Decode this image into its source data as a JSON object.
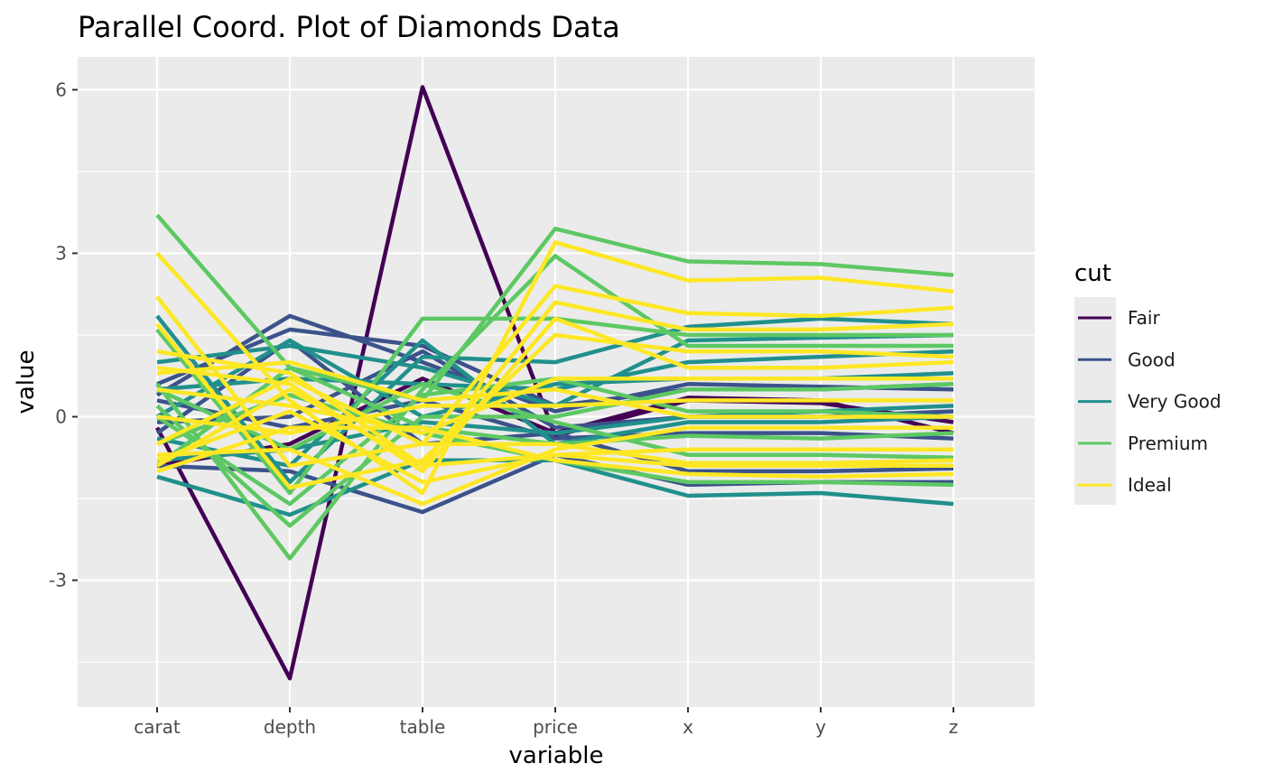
{
  "chart_data": {
    "type": "line",
    "subtype": "parallel-coordinates",
    "title": "Parallel Coord. Plot of Diamonds Data",
    "xlabel": "variable",
    "ylabel": "value",
    "categories": [
      "carat",
      "depth",
      "table",
      "price",
      "x",
      "y",
      "z"
    ],
    "y_ticks": [
      -3,
      0,
      3,
      6
    ],
    "y_tick_labels": [
      "-3",
      "0",
      "3",
      "6"
    ],
    "ylim": [
      -5.35,
      6.6
    ],
    "grid": true,
    "legend": {
      "title": "cut",
      "position": "right",
      "entries": [
        "Fair",
        "Good",
        "Very Good",
        "Premium",
        "Ideal"
      ]
    },
    "colors": {
      "Fair": "#440154",
      "Good": "#3B528B",
      "Very Good": "#21908C",
      "Premium": "#5DC863",
      "Ideal": "#FDE725"
    },
    "series": [
      {
        "group": "Fair",
        "values": [
          -0.2,
          -4.8,
          6.05,
          -0.35,
          0.3,
          0.25,
          -0.1
        ]
      },
      {
        "group": "Fair",
        "values": [
          -0.9,
          -0.5,
          0.7,
          -0.3,
          0.35,
          0.3,
          -0.3
        ]
      },
      {
        "group": "Good",
        "values": [
          0.4,
          1.85,
          1.0,
          0.1,
          0.6,
          0.55,
          0.5
        ]
      },
      {
        "group": "Good",
        "values": [
          0.6,
          1.6,
          1.3,
          0.2,
          0.5,
          0.5,
          0.6
        ]
      },
      {
        "group": "Good",
        "values": [
          -0.9,
          -1.0,
          -1.75,
          -0.7,
          -1.25,
          -1.2,
          -1.2
        ]
      },
      {
        "group": "Good",
        "values": [
          -0.3,
          1.4,
          -0.5,
          -0.3,
          -1.0,
          -1.0,
          -0.95
        ]
      },
      {
        "group": "Good",
        "values": [
          -0.1,
          0.0,
          1.2,
          -0.2,
          0.0,
          0.0,
          0.1
        ]
      },
      {
        "group": "Good",
        "values": [
          0.3,
          -0.2,
          0.3,
          -0.4,
          -0.3,
          -0.3,
          -0.4
        ]
      },
      {
        "group": "Very Good",
        "values": [
          1.85,
          -1.2,
          1.1,
          1.0,
          1.65,
          1.8,
          1.7
        ]
      },
      {
        "group": "Very Good",
        "values": [
          1.0,
          1.3,
          0.9,
          0.2,
          1.4,
          1.45,
          1.5
        ]
      },
      {
        "group": "Very Good",
        "values": [
          -1.1,
          -1.8,
          -0.8,
          -0.8,
          -1.45,
          -1.4,
          -1.6
        ]
      },
      {
        "group": "Very Good",
        "values": [
          0.5,
          0.7,
          0.6,
          0.5,
          1.0,
          1.1,
          1.2
        ]
      },
      {
        "group": "Very Good",
        "values": [
          -0.8,
          -0.6,
          -0.1,
          -0.3,
          0.0,
          0.1,
          0.2
        ]
      },
      {
        "group": "Very Good",
        "values": [
          0.0,
          1.4,
          0.0,
          0.6,
          0.7,
          0.7,
          0.8
        ]
      },
      {
        "group": "Very Good",
        "values": [
          -0.4,
          -0.9,
          1.4,
          -0.5,
          -0.1,
          -0.1,
          0.0
        ]
      },
      {
        "group": "Premium",
        "values": [
          3.7,
          0.9,
          0.3,
          3.45,
          2.85,
          2.8,
          2.6
        ]
      },
      {
        "group": "Premium",
        "values": [
          1.6,
          -1.4,
          1.8,
          1.8,
          1.5,
          1.5,
          1.5
        ]
      },
      {
        "group": "Premium",
        "values": [
          0.6,
          -2.6,
          0.5,
          2.95,
          1.3,
          1.3,
          1.3
        ]
      },
      {
        "group": "Premium",
        "values": [
          0.2,
          -2.0,
          0.0,
          0.0,
          0.5,
          0.5,
          0.6
        ]
      },
      {
        "group": "Premium",
        "values": [
          -0.9,
          0.9,
          -0.2,
          -0.5,
          -0.35,
          -0.4,
          -0.3
        ]
      },
      {
        "group": "Premium",
        "values": [
          0.5,
          -0.6,
          0.6,
          -0.1,
          -0.7,
          -0.7,
          -0.75
        ]
      },
      {
        "group": "Premium",
        "values": [
          -0.5,
          0.4,
          -0.3,
          -0.8,
          -1.2,
          -1.2,
          -1.25
        ]
      },
      {
        "group": "Premium",
        "values": [
          0.0,
          -1.6,
          0.4,
          0.7,
          0.1,
          0.1,
          0.0
        ]
      },
      {
        "group": "Ideal",
        "values": [
          3.0,
          0.3,
          -1.4,
          3.2,
          2.5,
          2.55,
          2.3
        ]
      },
      {
        "group": "Ideal",
        "values": [
          2.2,
          -0.9,
          -0.5,
          2.4,
          1.9,
          1.85,
          2.0
        ]
      },
      {
        "group": "Ideal",
        "values": [
          1.2,
          0.8,
          -0.9,
          2.1,
          1.6,
          1.6,
          1.7
        ]
      },
      {
        "group": "Ideal",
        "values": [
          1.7,
          -1.3,
          -0.8,
          1.5,
          1.2,
          1.2,
          1.1
        ]
      },
      {
        "group": "Ideal",
        "values": [
          0.9,
          0.6,
          -1.0,
          1.8,
          0.9,
          0.9,
          1.0
        ]
      },
      {
        "group": "Ideal",
        "values": [
          0.5,
          0.2,
          -0.3,
          0.7,
          0.7,
          0.7,
          0.7
        ]
      },
      {
        "group": "Ideal",
        "values": [
          0.0,
          -0.3,
          0.2,
          0.2,
          0.3,
          0.3,
          0.3
        ]
      },
      {
        "group": "Ideal",
        "values": [
          -0.7,
          -0.6,
          -1.6,
          -0.6,
          -0.2,
          -0.2,
          -0.2
        ]
      },
      {
        "group": "Ideal",
        "values": [
          -0.9,
          0.5,
          -0.9,
          -0.7,
          -0.6,
          -0.6,
          -0.6
        ]
      },
      {
        "group": "Ideal",
        "values": [
          -0.8,
          0.1,
          -1.2,
          -0.7,
          -0.9,
          -0.9,
          -0.9
        ]
      },
      {
        "group": "Ideal",
        "values": [
          -1.0,
          -0.2,
          -0.2,
          -0.8,
          -1.05,
          -1.1,
          -1.05
        ]
      },
      {
        "group": "Ideal",
        "values": [
          0.8,
          1.0,
          0.3,
          0.5,
          0.0,
          0.0,
          0.0
        ]
      },
      {
        "group": "Ideal",
        "values": [
          -0.5,
          0.7,
          -0.5,
          -0.5,
          -0.85,
          -0.85,
          -0.8
        ]
      }
    ]
  }
}
